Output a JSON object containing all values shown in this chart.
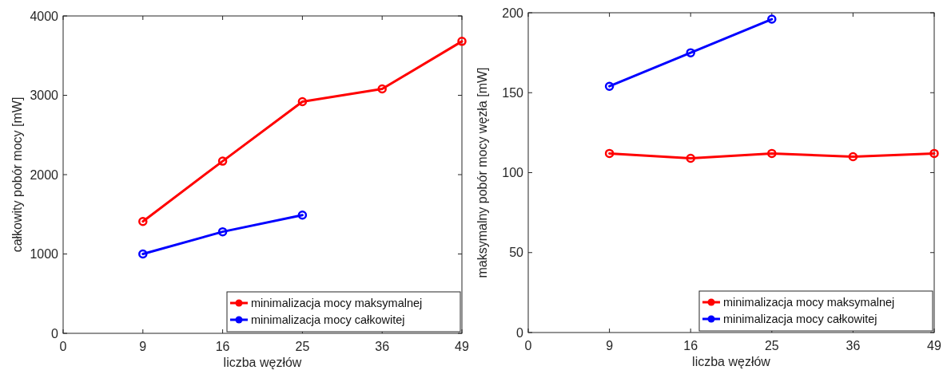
{
  "chart_data": [
    {
      "type": "line",
      "xlabel": "liczba węzłów",
      "ylabel": "całkowity pobór mocy [mW]",
      "categories": [
        "0",
        "9",
        "16",
        "25",
        "36",
        "49"
      ],
      "ylim": [
        0,
        4000
      ],
      "yticks": [
        0,
        1000,
        2000,
        3000,
        4000
      ],
      "grid": false,
      "legend": "bottom right",
      "marker": "circle",
      "line_style": "solid",
      "series": [
        {
          "name": "minimalizacja mocy maksymalnej",
          "color": "#ff0000",
          "values": [
            null,
            1410,
            2170,
            2920,
            3080,
            3680
          ]
        },
        {
          "name": "minimalizacja mocy całkowitej",
          "color": "#0000ff",
          "values": [
            null,
            1000,
            1280,
            1490,
            null,
            null
          ]
        }
      ]
    },
    {
      "type": "line",
      "xlabel": "liczba węzłów",
      "ylabel": "maksymalny pobór mocy węzła [mW]",
      "categories": [
        "0",
        "9",
        "16",
        "25",
        "36",
        "49"
      ],
      "ylim": [
        0,
        200
      ],
      "yticks": [
        0,
        50,
        100,
        150,
        200
      ],
      "grid": false,
      "legend": "bottom right",
      "marker": "circle",
      "line_style": "solid",
      "series": [
        {
          "name": "minimalizacja mocy maksymalnej",
          "color": "#ff0000",
          "values": [
            null,
            112,
            109,
            112,
            110,
            112
          ]
        },
        {
          "name": "minimalizacja mocy całkowitej",
          "color": "#0000ff",
          "values": [
            null,
            154,
            175,
            196,
            null,
            null
          ]
        }
      ]
    }
  ]
}
